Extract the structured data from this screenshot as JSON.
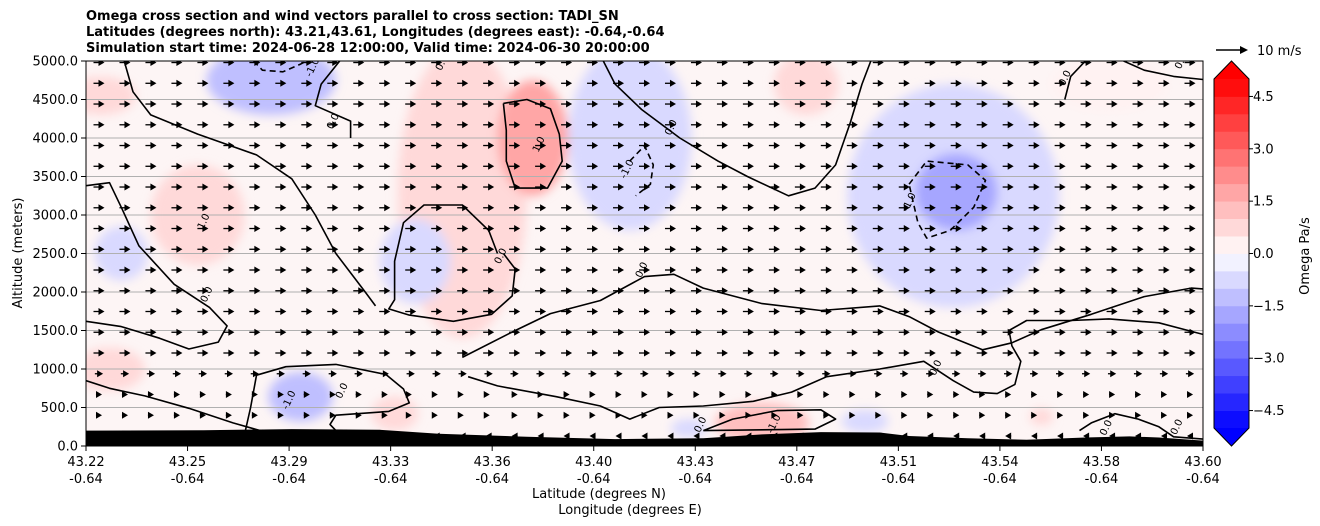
{
  "chart_data": {
    "type": "heatmap",
    "title_lines": [
      "Omega cross section and wind vectors parallel to cross section: TADI_SN",
      "Latitudes (degrees north): 43.21,43.61, Longitudes (degrees east): -0.64,-0.64",
      "Simulation start time: 2024-06-28 12:00:00, Valid time: 2024-06-30 20:00:00"
    ],
    "xlabel_line1": "Latitude (degrees N)",
    "xlabel_line2": "Longitude (degrees E)",
    "ylabel": "Altitude (meters)",
    "colorbar_label": "Omega Pa/s",
    "quiver_key_label": "10 m/s",
    "x_ticks": [
      {
        "lat": "43.22",
        "lon": "-0.64"
      },
      {
        "lat": "43.25",
        "lon": "-0.64"
      },
      {
        "lat": "43.29",
        "lon": "-0.64"
      },
      {
        "lat": "43.33",
        "lon": "-0.64"
      },
      {
        "lat": "43.36",
        "lon": "-0.64"
      },
      {
        "lat": "43.40",
        "lon": "-0.64"
      },
      {
        "lat": "43.43",
        "lon": "-0.64"
      },
      {
        "lat": "43.47",
        "lon": "-0.64"
      },
      {
        "lat": "43.51",
        "lon": "-0.64"
      },
      {
        "lat": "43.54",
        "lon": "-0.64"
      },
      {
        "lat": "43.58",
        "lon": "-0.64"
      },
      {
        "lat": "43.60",
        "lon": "-0.64"
      }
    ],
    "xlim": [
      43.22,
      43.6
    ],
    "ylim": [
      0,
      5000
    ],
    "y_ticks": [
      0,
      500,
      1000,
      1500,
      2000,
      2500,
      3000,
      3500,
      4000,
      4500,
      5000
    ],
    "y_tick_labels": [
      "0.0",
      "500.0",
      "1000.0",
      "1500.0",
      "2000.0",
      "2500.0",
      "3000.0",
      "3500.0",
      "4000.0",
      "4500.0",
      "5000.0"
    ],
    "grid": "horizontal",
    "colorbar_ticks": [
      -4.5,
      -3.0,
      -1.5,
      0.0,
      1.5,
      3.0,
      4.5
    ],
    "colorbar_tick_labels": [
      "−4.5",
      "−3.0",
      "−1.5",
      "0.0",
      "1.5",
      "3.0",
      "4.5"
    ],
    "colorbar_range": [
      -5.0,
      5.0
    ],
    "colormap": "bwr",
    "contour_levels": [
      -1.0,
      0.0,
      1.0
    ],
    "contour_labels": [
      {
        "text": "-1.0",
        "x": 43.298,
        "y": 4900
      },
      {
        "text": "0.0",
        "x": 43.342,
        "y": 4960
      },
      {
        "text": "0.0",
        "x": 43.305,
        "y": 4200
      },
      {
        "text": "1.0",
        "x": 43.375,
        "y": 3900
      },
      {
        "text": "1.0",
        "x": 43.261,
        "y": 2900
      },
      {
        "text": "0.0",
        "x": 43.262,
        "y": 1950
      },
      {
        "text": "0.0",
        "x": 43.362,
        "y": 2450
      },
      {
        "text": "0.0",
        "x": 43.41,
        "y": 2270
      },
      {
        "text": "-1.0",
        "x": 43.405,
        "y": 3580
      },
      {
        "text": "0.0",
        "x": 43.42,
        "y": 4120
      },
      {
        "text": "-1.0",
        "x": 43.501,
        "y": 3150
      },
      {
        "text": "0.0",
        "x": 43.554,
        "y": 4760
      },
      {
        "text": "0.0",
        "x": 43.51,
        "y": 1000
      },
      {
        "text": "-1.0",
        "x": 43.29,
        "y": 580
      },
      {
        "text": "0.0",
        "x": 43.308,
        "y": 700
      },
      {
        "text": "0.0",
        "x": 43.43,
        "y": 260
      },
      {
        "text": "-1.0",
        "x": 43.455,
        "y": 270
      },
      {
        "text": "0.0",
        "x": 43.568,
        "y": 220
      },
      {
        "text": "0.0",
        "x": 43.592,
        "y": 230
      },
      {
        "text": "0.0",
        "x": 43.5935,
        "y": 4980
      }
    ],
    "omega_blobs": [
      {
        "lat": 43.283,
        "alt": 4750,
        "rlat": 0.022,
        "ralt": 450,
        "value": -1.3
      },
      {
        "lat": 43.225,
        "alt": 4550,
        "rlat": 0.012,
        "ralt": 250,
        "value": 0.5
      },
      {
        "lat": 43.258,
        "alt": 3000,
        "rlat": 0.016,
        "ralt": 650,
        "value": 0.9
      },
      {
        "lat": 43.232,
        "alt": 2500,
        "rlat": 0.009,
        "ralt": 350,
        "value": -0.7
      },
      {
        "lat": 43.228,
        "alt": 1000,
        "rlat": 0.012,
        "ralt": 280,
        "value": 0.9
      },
      {
        "lat": 43.348,
        "alt": 3300,
        "rlat": 0.022,
        "ralt": 1900,
        "value": 0.6
      },
      {
        "lat": 43.332,
        "alt": 2400,
        "rlat": 0.012,
        "ralt": 550,
        "value": -0.9
      },
      {
        "lat": 43.372,
        "alt": 4000,
        "rlat": 0.012,
        "ralt": 750,
        "value": 1.6
      },
      {
        "lat": 43.405,
        "alt": 4000,
        "rlat": 0.021,
        "ralt": 1200,
        "value": -0.9
      },
      {
        "lat": 43.465,
        "alt": 4700,
        "rlat": 0.011,
        "ralt": 400,
        "value": 0.5
      },
      {
        "lat": 43.515,
        "alt": 3250,
        "rlat": 0.036,
        "ralt": 1450,
        "value": -0.8
      },
      {
        "lat": 43.516,
        "alt": 3300,
        "rlat": 0.014,
        "ralt": 500,
        "value": -1.6
      },
      {
        "lat": 43.293,
        "alt": 640,
        "rlat": 0.011,
        "ralt": 320,
        "value": -1.0
      },
      {
        "lat": 43.325,
        "alt": 420,
        "rlat": 0.008,
        "ralt": 220,
        "value": 0.6
      },
      {
        "lat": 43.45,
        "alt": 300,
        "rlat": 0.016,
        "ralt": 260,
        "value": 1.0
      },
      {
        "lat": 43.425,
        "alt": 230,
        "rlat": 0.006,
        "ralt": 120,
        "value": -0.7
      },
      {
        "lat": 43.485,
        "alt": 320,
        "rlat": 0.008,
        "ralt": 150,
        "value": -0.5
      },
      {
        "lat": 43.568,
        "alt": 4700,
        "rlat": 0.02,
        "ralt": 350,
        "value": 0.4
      },
      {
        "lat": 43.545,
        "alt": 380,
        "rlat": 0.004,
        "ralt": 110,
        "value": 0.8
      }
    ],
    "contours": [
      {
        "level": 0.0,
        "dashed": false,
        "points": [
          [
            43.233,
            5000
          ],
          [
            43.236,
            4600
          ],
          [
            43.242,
            4300
          ],
          [
            43.258,
            4050
          ],
          [
            43.278,
            3780
          ],
          [
            43.29,
            3470
          ],
          [
            43.298,
            3000
          ],
          [
            43.305,
            2500
          ],
          [
            43.315,
            2000
          ],
          [
            43.3185,
            1820
          ]
        ]
      },
      {
        "level": 0.0,
        "dashed": false,
        "points": [
          [
            43.22,
            3380
          ],
          [
            43.228,
            3420
          ],
          [
            43.232,
            3100
          ],
          [
            43.238,
            2600
          ],
          [
            43.25,
            2100
          ],
          [
            43.262,
            1800
          ],
          [
            43.268,
            1560
          ],
          [
            43.265,
            1350
          ],
          [
            43.255,
            1260
          ],
          [
            43.245,
            1400
          ],
          [
            43.232,
            1550
          ],
          [
            43.22,
            1620
          ]
        ]
      },
      {
        "level": 0.0,
        "dashed": false,
        "points": [
          [
            43.22,
            850
          ],
          [
            43.228,
            750
          ],
          [
            43.24,
            650
          ],
          [
            43.255,
            490
          ],
          [
            43.27,
            300
          ],
          [
            43.283,
            160
          ]
        ]
      },
      {
        "level": 0.0,
        "dashed": false,
        "points": [
          [
            43.274,
            160
          ],
          [
            43.276,
            500
          ],
          [
            43.278,
            920
          ],
          [
            43.288,
            1030
          ],
          [
            43.305,
            1060
          ],
          [
            43.322,
            930
          ],
          [
            43.328,
            740
          ],
          [
            43.33,
            560
          ],
          [
            43.323,
            450
          ],
          [
            43.305,
            400
          ],
          [
            43.303,
            280
          ],
          [
            43.305,
            200
          ]
        ]
      },
      {
        "level": 0.0,
        "dashed": false,
        "points": [
          [
            43.3063,
            5000
          ],
          [
            43.3,
            4700
          ],
          [
            43.298,
            4420
          ],
          [
            43.31,
            4220
          ],
          [
            43.31,
            4000
          ]
        ]
      },
      {
        "level": 0.0,
        "dashed": false,
        "points": [
          [
            43.36,
            2500
          ],
          [
            43.357,
            2800
          ],
          [
            43.348,
            3130
          ],
          [
            43.335,
            3130
          ],
          [
            43.328,
            2900
          ],
          [
            43.325,
            2400
          ],
          [
            43.325,
            1900
          ],
          [
            43.323,
            1780
          ],
          [
            43.33,
            1700
          ],
          [
            43.345,
            1620
          ],
          [
            43.358,
            1710
          ],
          [
            43.365,
            1950
          ],
          [
            43.366,
            2300
          ],
          [
            43.362,
            2500
          ]
        ]
      },
      {
        "level": 0.0,
        "dashed": false,
        "points": [
          [
            43.396,
            5000
          ],
          [
            43.4,
            4700
          ],
          [
            43.409,
            4370
          ],
          [
            43.422,
            4000
          ],
          [
            43.435,
            3700
          ],
          [
            43.445,
            3500
          ],
          [
            43.459,
            3250
          ],
          [
            43.468,
            3350
          ],
          [
            43.475,
            3650
          ],
          [
            43.48,
            4200
          ],
          [
            43.484,
            4700
          ],
          [
            43.487,
            5000
          ]
        ]
      },
      {
        "level": 0.0,
        "dashed": false,
        "points": [
          [
            43.348,
            1150
          ],
          [
            43.365,
            1480
          ],
          [
            43.378,
            1720
          ],
          [
            43.395,
            1890
          ],
          [
            43.41,
            2200
          ],
          [
            43.42,
            2230
          ],
          [
            43.43,
            2050
          ],
          [
            43.45,
            1850
          ],
          [
            43.47,
            1760
          ],
          [
            43.49,
            1820
          ],
          [
            43.5,
            1680
          ],
          [
            43.51,
            1480
          ],
          [
            43.525,
            1250
          ],
          [
            43.535,
            1340
          ],
          [
            43.545,
            1510
          ],
          [
            43.562,
            1710
          ],
          [
            43.58,
            1940
          ],
          [
            43.596,
            2050
          ],
          [
            43.6,
            2040
          ]
        ]
      },
      {
        "level": 0.0,
        "dashed": false,
        "points": [
          [
            43.6,
            1450
          ],
          [
            43.585,
            1600
          ],
          [
            43.568,
            1650
          ],
          [
            43.555,
            1630
          ],
          [
            43.54,
            1630
          ],
          [
            43.534,
            1500
          ],
          [
            43.535,
            1300
          ],
          [
            43.538,
            1100
          ],
          [
            43.536,
            800
          ],
          [
            43.53,
            680
          ],
          [
            43.522,
            700
          ],
          [
            43.515,
            850
          ],
          [
            43.505,
            1100
          ],
          [
            43.49,
            1000
          ],
          [
            43.472,
            900
          ],
          [
            43.46,
            700
          ],
          [
            43.447,
            580
          ],
          [
            43.43,
            520
          ],
          [
            43.415,
            500
          ],
          [
            43.405,
            350
          ],
          [
            43.395,
            520
          ],
          [
            43.38,
            640
          ],
          [
            43.36,
            780
          ],
          [
            43.35,
            900
          ]
        ]
      },
      {
        "level": 1.0,
        "dashed": false,
        "points": [
          [
            43.362,
            4450
          ],
          [
            43.37,
            4500
          ],
          [
            43.378,
            4380
          ],
          [
            43.381,
            4050
          ],
          [
            43.382,
            3700
          ],
          [
            43.377,
            3350
          ],
          [
            43.366,
            3350
          ],
          [
            43.363,
            3700
          ],
          [
            43.363,
            4100
          ],
          [
            43.362,
            4450
          ]
        ]
      },
      {
        "level": -1.0,
        "dashed": true,
        "points": [
          [
            43.277,
            5000
          ],
          [
            43.28,
            4880
          ],
          [
            43.287,
            4860
          ],
          [
            43.293,
            4960
          ],
          [
            43.295,
            5000
          ]
        ]
      },
      {
        "level": -1.0,
        "dashed": true,
        "points": [
          [
            43.405,
            3700
          ],
          [
            43.41,
            3900
          ],
          [
            43.413,
            3650
          ],
          [
            43.412,
            3400
          ],
          [
            43.407,
            3250
          ]
        ]
      },
      {
        "level": -1.0,
        "dashed": true,
        "points": [
          [
            43.5,
            3400
          ],
          [
            43.506,
            3700
          ],
          [
            43.52,
            3650
          ],
          [
            43.526,
            3450
          ],
          [
            43.522,
            3100
          ],
          [
            43.514,
            2800
          ],
          [
            43.506,
            2700
          ],
          [
            43.503,
            2900
          ],
          [
            43.5,
            3400
          ]
        ]
      },
      {
        "level": 0.0,
        "dashed": false,
        "points": [
          [
            43.43,
            200
          ],
          [
            43.44,
            350
          ],
          [
            43.455,
            460
          ],
          [
            43.47,
            470
          ],
          [
            43.475,
            350
          ],
          [
            43.468,
            220
          ],
          [
            43.45,
            210
          ],
          [
            43.43,
            200
          ]
        ]
      },
      {
        "level": 0.0,
        "dashed": false,
        "points": [
          [
            43.558,
            200
          ],
          [
            43.562,
            300
          ],
          [
            43.57,
            420
          ],
          [
            43.578,
            350
          ],
          [
            43.585,
            250
          ],
          [
            43.59,
            120
          ],
          [
            43.6,
            90
          ]
        ]
      },
      {
        "level": 0.0,
        "dashed": false,
        "points": [
          [
            43.553,
            4500
          ],
          [
            43.555,
            4800
          ],
          [
            43.56,
            5000
          ]
        ]
      },
      {
        "level": 0.0,
        "dashed": false,
        "points": [
          [
            43.573,
            5000
          ],
          [
            43.58,
            4880
          ],
          [
            43.59,
            4800
          ],
          [
            43.6,
            4760
          ]
        ]
      }
    ],
    "terrain": [
      [
        43.22,
        200
      ],
      [
        43.26,
        205
      ],
      [
        43.29,
        220
      ],
      [
        43.32,
        210
      ],
      [
        43.34,
        160
      ],
      [
        43.37,
        120
      ],
      [
        43.4,
        90
      ],
      [
        43.43,
        100
      ],
      [
        43.45,
        150
      ],
      [
        43.47,
        180
      ],
      [
        43.49,
        175
      ],
      [
        43.5,
        130
      ],
      [
        43.52,
        100
      ],
      [
        43.54,
        80
      ],
      [
        43.56,
        110
      ],
      [
        43.575,
        125
      ],
      [
        43.585,
        110
      ],
      [
        43.6,
        70
      ]
    ],
    "wind": {
      "columns": 43,
      "rows": 19,
      "note_units": "m/s",
      "reference_speed": 10
    }
  }
}
